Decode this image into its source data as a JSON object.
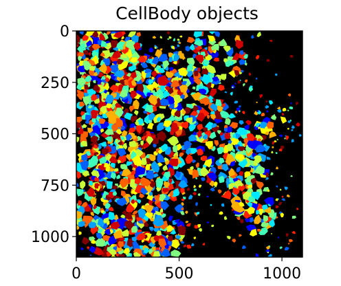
{
  "title": "CellBody objects",
  "image": {
    "background_color": "#000000",
    "palette": [
      "#0000ff",
      "#0060ff",
      "#00a0ff",
      "#00e8ff",
      "#40ffb8",
      "#80ff80",
      "#c8ff38",
      "#ffff00",
      "#ffb000",
      "#ff6000",
      "#ff2000",
      "#d00000",
      "#800000"
    ],
    "width_units": 1100,
    "height_units": 1100
  },
  "x_axis": {
    "ticks": [
      {
        "value": 0,
        "label": "0"
      },
      {
        "value": 500,
        "label": "500"
      },
      {
        "value": 1000,
        "label": "1000"
      }
    ]
  },
  "y_axis": {
    "ticks": [
      {
        "value": 0,
        "label": "0"
      },
      {
        "value": 250,
        "label": "250"
      },
      {
        "value": 500,
        "label": "500"
      },
      {
        "value": 750,
        "label": "750"
      },
      {
        "value": 1000,
        "label": "1000"
      }
    ]
  }
}
